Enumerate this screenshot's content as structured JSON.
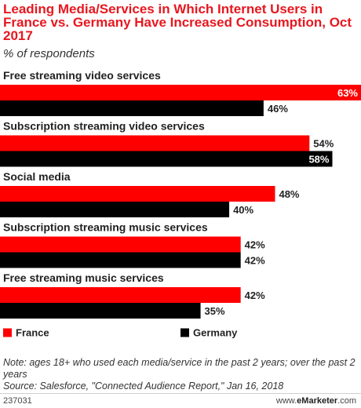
{
  "title": "Leading Media/Services in Which Internet Users in France vs. Germany Have Increased Consumption, Oct 2017",
  "subtitle": "% of respondents",
  "chart_data": {
    "type": "bar",
    "orientation": "horizontal",
    "categories": [
      "Free streaming video services",
      "Subscription streaming video services",
      "Social media",
      "Subscription streaming music services",
      "Free streaming music services"
    ],
    "series": [
      {
        "name": "France",
        "color": "#ff0000",
        "values": [
          63,
          54,
          48,
          42,
          42
        ]
      },
      {
        "name": "Germany",
        "color": "#000000",
        "values": [
          46,
          58,
          40,
          42,
          35
        ]
      }
    ],
    "value_suffix": "%",
    "legend_position": "bottom",
    "grid": false
  },
  "notes": {
    "note": "Note: ages 18+ who used each media/service in the past 2 years; over the past 2 years",
    "source": "Source: Salesforce, \"Connected Audience Report,\" Jan 16, 2018"
  },
  "footer": {
    "chart_id": "237031",
    "brand_prefix": "www.",
    "brand_name": "eMarketer",
    "brand_suffix": ".com"
  }
}
